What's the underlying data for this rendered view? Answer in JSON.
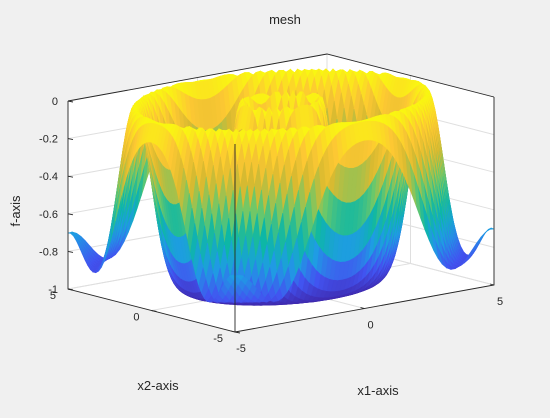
{
  "window": {
    "background": "#f0f0f0",
    "axes_background": "#ffffff"
  },
  "chart_data": {
    "type": "surface",
    "title": "mesh",
    "xlabel": "x1-axis",
    "ylabel": "x2-axis",
    "zlabel": "f-axis",
    "xlim": [
      -5,
      5
    ],
    "ylim": [
      -5,
      5
    ],
    "zlim": [
      -1,
      0
    ],
    "x_ticks": [
      -5,
      0,
      5
    ],
    "y_ticks": [
      -5,
      0,
      5
    ],
    "z_ticks": [
      -1,
      -0.8,
      -0.6,
      -0.4,
      -0.2,
      0
    ],
    "z_tick_labels": [
      "-1",
      "-0.8",
      "-0.6",
      "-0.4",
      "-0.2",
      "0"
    ],
    "colormap": "parula",
    "colormap_stops": [
      "#3e26a8",
      "#4253f0",
      "#1f9ce4",
      "#0db7a5",
      "#6cc86a",
      "#d9ba30",
      "#fdc833",
      "#f9fb0e"
    ],
    "grid": true,
    "box": true,
    "surface_description": "radially symmetric mesh, z = f(sqrt(x1^2+x2^2)) with ring maxima near r=1.2 and r=4.7 and minima near r=2.5-3.5 and at domain corners"
  }
}
